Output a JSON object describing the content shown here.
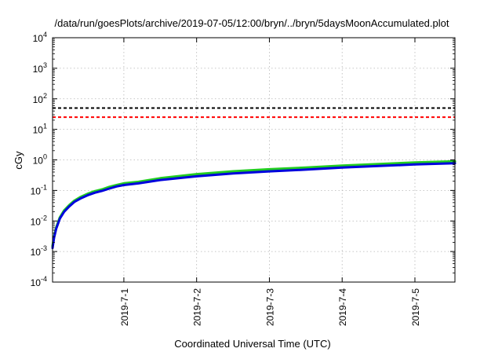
{
  "chart_data": {
    "type": "line",
    "title": "/data/run/goesPlots/archive/2019-07-05/12:00/bryn/../bryn/5daysMoonAccumulated.plot",
    "xlabel": "Coordinated Universal Time (UTC)",
    "ylabel": "cGy",
    "y_scale": "log",
    "ylim_exp": [
      -4,
      4
    ],
    "xlim": [
      -0.98,
      4.55
    ],
    "x_tick_positions": [
      0,
      1,
      2,
      3,
      4
    ],
    "x_tick_labels": [
      "2019-7-1",
      "2019-7-2",
      "2019-7-3",
      "2019-7-4",
      "2019-7-5"
    ],
    "y_tick_labels": [
      {
        "base": "10",
        "exp": "-4"
      },
      {
        "base": "10",
        "exp": "-3"
      },
      {
        "base": "10",
        "exp": "-2"
      },
      {
        "base": "10",
        "exp": "-1"
      },
      {
        "base": "10",
        "exp": "0"
      },
      {
        "base": "10",
        "exp": "1"
      },
      {
        "base": "10",
        "exp": "2"
      },
      {
        "base": "10",
        "exp": "3"
      },
      {
        "base": "10",
        "exp": "4"
      }
    ],
    "grid": true,
    "reference_lines": [
      {
        "value": 50,
        "color": "#000000",
        "style": "dashed"
      },
      {
        "value": 25,
        "color": "#ff0000",
        "style": "dashed"
      }
    ],
    "series": [
      {
        "color": "#22cc22",
        "x": [
          -0.98,
          -0.96,
          -0.93,
          -0.88,
          -0.82,
          -0.75,
          -0.68,
          -0.6,
          -0.5,
          -0.4,
          -0.3,
          -0.2,
          -0.1,
          0.0,
          0.2,
          0.5,
          1.0,
          1.5,
          2.0,
          2.5,
          3.0,
          3.5,
          4.0,
          4.55
        ],
        "y": [
          0.0015,
          0.003,
          0.006,
          0.013,
          0.022,
          0.033,
          0.046,
          0.06,
          0.077,
          0.094,
          0.108,
          0.13,
          0.15,
          0.17,
          0.19,
          0.25,
          0.34,
          0.42,
          0.49,
          0.56,
          0.65,
          0.73,
          0.82,
          0.9
        ]
      },
      {
        "color": "#0000dd",
        "x": [
          -0.98,
          -0.96,
          -0.93,
          -0.88,
          -0.82,
          -0.75,
          -0.68,
          -0.6,
          -0.5,
          -0.4,
          -0.3,
          -0.2,
          -0.1,
          0.0,
          0.2,
          0.5,
          1.0,
          1.5,
          2.0,
          2.5,
          3.0,
          3.5,
          4.0,
          4.55
        ],
        "y": [
          0.0013,
          0.0028,
          0.0055,
          0.012,
          0.02,
          0.03,
          0.042,
          0.054,
          0.069,
          0.084,
          0.097,
          0.115,
          0.135,
          0.15,
          0.17,
          0.22,
          0.29,
          0.36,
          0.42,
          0.48,
          0.56,
          0.63,
          0.71,
          0.78
        ]
      }
    ]
  }
}
